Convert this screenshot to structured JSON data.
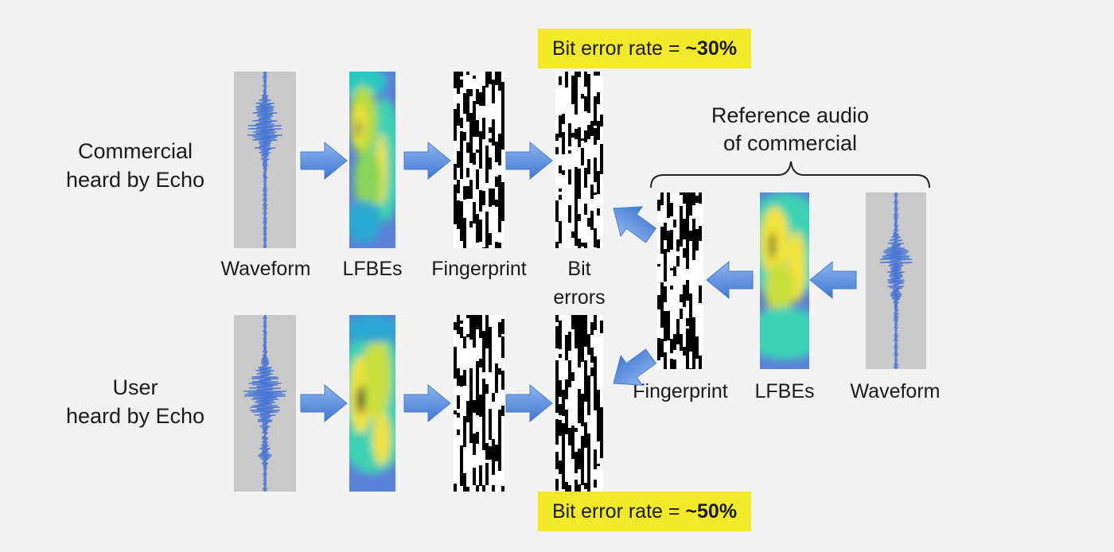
{
  "row_labels": {
    "commercial": "Commercial\nheard by Echo",
    "user": "User\nheard by Echo"
  },
  "stage_labels": {
    "waveform": "Waveform",
    "lfbes": "LFBEs",
    "fingerprint": "Fingerprint",
    "bit_errors": "Bit\nerrors"
  },
  "reference": {
    "title": "Reference audio\nof commercial",
    "fingerprint": "Fingerprint",
    "lfbes": "LFBEs",
    "waveform": "Waveform"
  },
  "callouts": {
    "top": {
      "text": "Bit error rate = ",
      "value": "~30%"
    },
    "bottom": {
      "text": "Bit error rate = ",
      "value": "~50%"
    }
  },
  "colors": {
    "background": "#f2f2f2",
    "callout": "#f2ea29",
    "arrow": "#5b8fd6",
    "waveform": "#4a78d4",
    "waveform_bg": "#c9c9c9"
  },
  "icons": {
    "arrow": "block-arrow-icon",
    "bracket": "curly-brace-icon"
  }
}
